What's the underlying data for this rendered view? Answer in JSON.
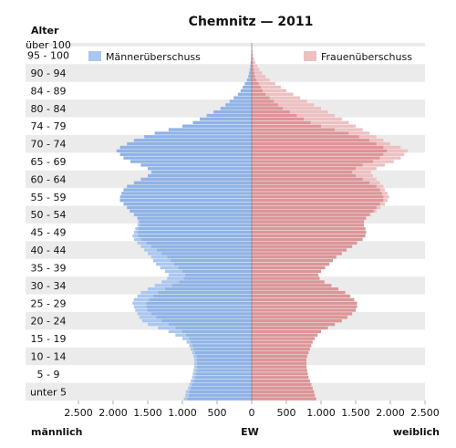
{
  "chart_data": {
    "type": "bar",
    "title": "Chemnitz — 2011",
    "y_axis_title": "Alter",
    "x_axis_title": "EW",
    "left_label": "männlich",
    "right_label": "weiblich",
    "xlim": [
      -2500,
      2500
    ],
    "x_ticks": [
      -2500,
      -2000,
      -1500,
      -1000,
      -500,
      0,
      500,
      1000,
      1500,
      2000,
      2500
    ],
    "x_tick_labels": [
      "2.500",
      "2.000",
      "1.500",
      "1.000",
      "500",
      "0",
      "500",
      "1.000",
      "1.500",
      "2.000",
      "2.500"
    ],
    "age_groups": [
      "unter 5",
      "5 - 9",
      "10 - 14",
      "15 - 19",
      "20 - 24",
      "25 - 29",
      "30 - 34",
      "35 - 39",
      "40 - 44",
      "45 - 49",
      "50 - 54",
      "55 - 59",
      "60 - 64",
      "65 - 69",
      "70 - 74",
      "74 - 79",
      "80 - 84",
      "84 - 89",
      "90 - 94",
      "95 - 100",
      "über 100"
    ],
    "legend": {
      "male_surplus": "Männerüberschuss",
      "female_surplus": "Frauenüberschuss"
    },
    "colors": {
      "male": "#8fb3e6",
      "male_surplus": "#aac7f0",
      "female": "#dc9598",
      "female_surplus": "#eec0c2",
      "band": "#ebebeb"
    },
    "ages": [
      0,
      1,
      2,
      3,
      4,
      5,
      6,
      7,
      8,
      9,
      10,
      11,
      12,
      13,
      14,
      15,
      16,
      17,
      18,
      19,
      20,
      21,
      22,
      23,
      24,
      25,
      26,
      27,
      28,
      29,
      30,
      31,
      32,
      33,
      34,
      35,
      36,
      37,
      38,
      39,
      40,
      41,
      42,
      43,
      44,
      45,
      46,
      47,
      48,
      49,
      50,
      51,
      52,
      53,
      54,
      55,
      56,
      57,
      58,
      59,
      60,
      61,
      62,
      63,
      64,
      65,
      66,
      67,
      68,
      69,
      70,
      71,
      72,
      73,
      74,
      75,
      76,
      77,
      78,
      79,
      80,
      81,
      82,
      83,
      84,
      85,
      86,
      87,
      88,
      89,
      90,
      91,
      92,
      93,
      94,
      95,
      96,
      97,
      98,
      99,
      100
    ],
    "series": [
      {
        "name": "männlich",
        "values": [
          980,
          960,
          950,
          920,
          900,
          880,
          860,
          850,
          840,
          830,
          830,
          830,
          840,
          860,
          880,
          900,
          940,
          1000,
          1100,
          1200,
          1350,
          1500,
          1580,
          1620,
          1650,
          1680,
          1700,
          1720,
          1700,
          1650,
          1600,
          1500,
          1400,
          1300,
          1220,
          1200,
          1250,
          1320,
          1380,
          1420,
          1450,
          1500,
          1550,
          1600,
          1650,
          1700,
          1720,
          1700,
          1680,
          1650,
          1640,
          1650,
          1700,
          1760,
          1800,
          1850,
          1900,
          1900,
          1880,
          1850,
          1800,
          1700,
          1600,
          1500,
          1450,
          1500,
          1600,
          1750,
          1850,
          1900,
          1950,
          1900,
          1800,
          1700,
          1550,
          1400,
          1200,
          1000,
          850,
          750,
          650,
          550,
          450,
          380,
          320,
          260,
          200,
          160,
          130,
          100,
          70,
          50,
          40,
          30,
          20,
          15,
          10,
          7,
          5,
          3,
          2
        ]
      },
      {
        "name": "weiblich",
        "values": [
          930,
          910,
          900,
          880,
          860,
          840,
          820,
          810,
          800,
          790,
          790,
          790,
          800,
          820,
          840,
          860,
          880,
          910,
          950,
          1000,
          1100,
          1200,
          1300,
          1380,
          1450,
          1500,
          1520,
          1520,
          1480,
          1420,
          1350,
          1250,
          1150,
          1050,
          980,
          960,
          1000,
          1060,
          1120,
          1170,
          1220,
          1300,
          1370,
          1450,
          1520,
          1600,
          1640,
          1650,
          1640,
          1620,
          1620,
          1650,
          1720,
          1800,
          1860,
          1920,
          1960,
          1980,
          1960,
          1920,
          1900,
          1850,
          1800,
          1750,
          1720,
          1800,
          1920,
          2050,
          2150,
          2200,
          2250,
          2150,
          2000,
          1900,
          1800,
          1700,
          1600,
          1500,
          1400,
          1300,
          1200,
          1100,
          1000,
          900,
          800,
          700,
          600,
          500,
          420,
          340,
          260,
          200,
          150,
          110,
          80,
          50,
          35,
          22,
          14,
          8,
          5
        ]
      }
    ]
  }
}
